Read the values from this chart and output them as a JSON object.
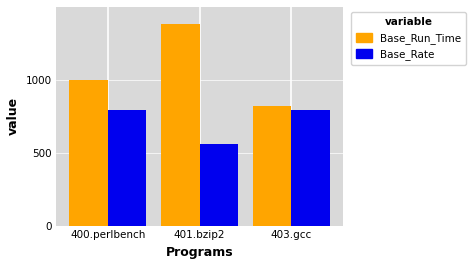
{
  "categories": [
    "400.perlbench",
    "401.bzip2",
    "403.gcc"
  ],
  "base_run_time": [
    1000,
    1380,
    820
  ],
  "base_rate": [
    790,
    560,
    790
  ],
  "bar_color_run_time": "#FFA500",
  "bar_color_rate": "#0000EE",
  "xlabel": "Programs",
  "ylabel": "value",
  "ylim": [
    0,
    1500
  ],
  "yticks": [
    0,
    500,
    1000
  ],
  "legend_title": "variable",
  "legend_labels": [
    "Base_Run_Time",
    "Base_Rate"
  ],
  "plot_bg_color": "#D9D9D9",
  "fig_bg_color": "#FFFFFF",
  "grid_color": "#FFFFFF",
  "bar_width": 0.42,
  "axis_label_fontsize": 9,
  "tick_fontsize": 7.5,
  "legend_fontsize": 7.5
}
